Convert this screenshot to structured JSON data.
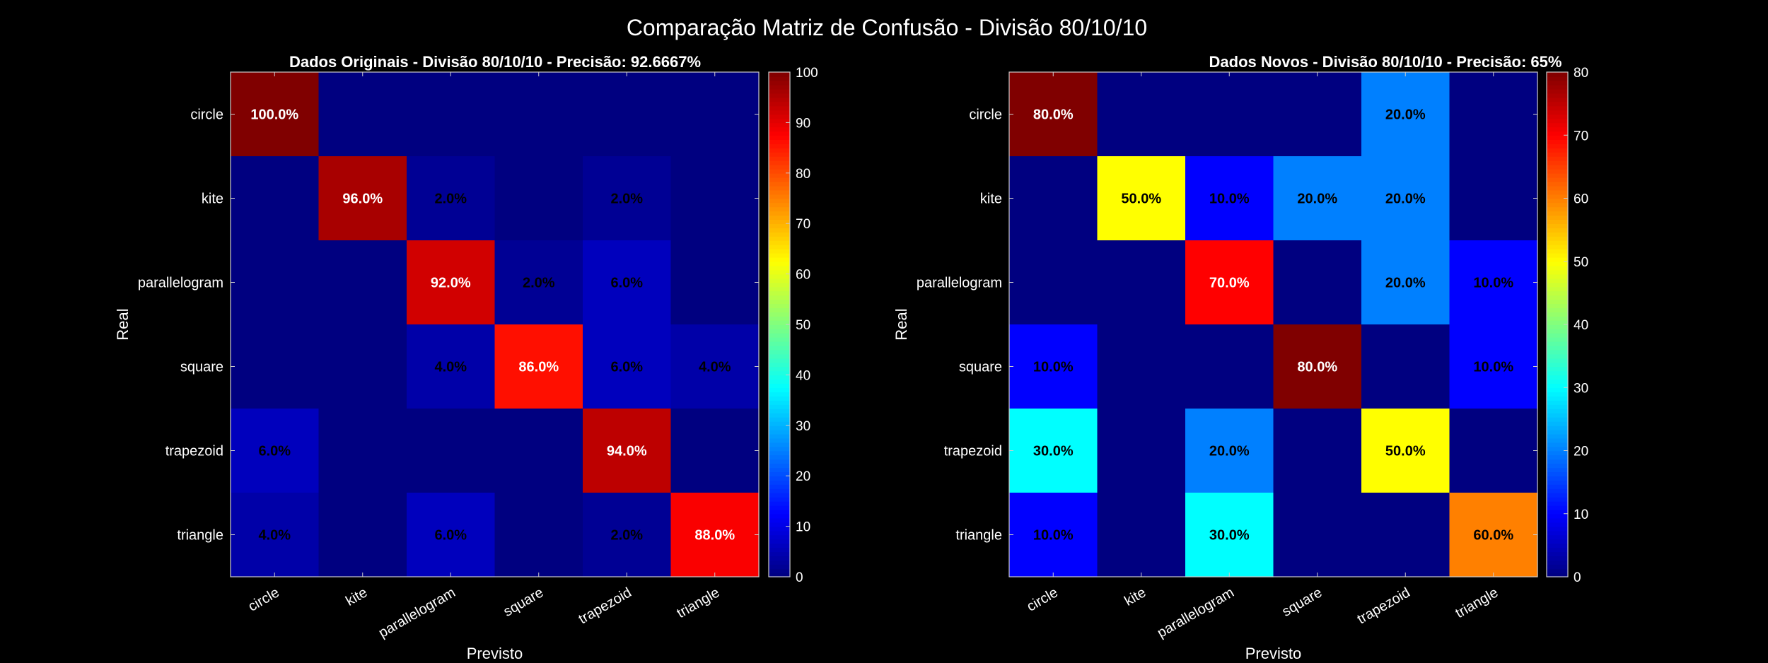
{
  "figure_title": "Comparação Matriz de Confusão - Divisão 80/10/10",
  "chart_data": [
    {
      "type": "heatmap",
      "title": "Dados Originais - Divisão 80/10/10 - Precisão: 92.6667%",
      "xlabel": "Previsto",
      "ylabel": "Real",
      "x_categories": [
        "circle",
        "kite",
        "parallelogram",
        "square",
        "trapezoid",
        "triangle"
      ],
      "y_categories": [
        "circle",
        "kite",
        "parallelogram",
        "square",
        "trapezoid",
        "triangle"
      ],
      "values": [
        [
          100,
          0,
          0,
          0,
          0,
          0
        ],
        [
          0,
          96,
          2,
          0,
          2,
          0
        ],
        [
          0,
          0,
          92,
          2,
          6,
          0
        ],
        [
          0,
          0,
          4,
          86,
          6,
          4
        ],
        [
          6,
          0,
          0,
          0,
          94,
          0
        ],
        [
          4,
          0,
          6,
          0,
          2,
          88
        ]
      ],
      "labels": [
        [
          "100.0%",
          "",
          "",
          "",
          "",
          ""
        ],
        [
          "",
          "96.0%",
          "2.0%",
          "",
          "2.0%",
          ""
        ],
        [
          "",
          "",
          "92.0%",
          "2.0%",
          "6.0%",
          ""
        ],
        [
          "",
          "",
          "4.0%",
          "86.0%",
          "6.0%",
          "4.0%"
        ],
        [
          "6.0%",
          "",
          "",
          "",
          "94.0%",
          ""
        ],
        [
          "4.0%",
          "",
          "6.0%",
          "",
          "2.0%",
          "88.0%"
        ]
      ],
      "colorbar": {
        "min": 0,
        "max": 100,
        "ticks": [
          "0",
          "10",
          "20",
          "30",
          "40",
          "50",
          "60",
          "70",
          "80",
          "90",
          "100"
        ]
      },
      "colormap": "jet"
    },
    {
      "type": "heatmap",
      "title": "Dados Novos - Divisão 80/10/10 - Precisão: 65%",
      "xlabel": "Previsto",
      "ylabel": "Real",
      "x_categories": [
        "circle",
        "kite",
        "parallelogram",
        "square",
        "trapezoid",
        "triangle"
      ],
      "y_categories": [
        "circle",
        "kite",
        "parallelogram",
        "square",
        "trapezoid",
        "triangle"
      ],
      "values": [
        [
          80,
          0,
          0,
          0,
          20,
          0
        ],
        [
          0,
          50,
          10,
          20,
          20,
          0
        ],
        [
          0,
          0,
          70,
          0,
          20,
          10
        ],
        [
          10,
          0,
          0,
          80,
          0,
          10
        ],
        [
          30,
          0,
          20,
          0,
          50,
          0
        ],
        [
          10,
          0,
          30,
          0,
          0,
          60
        ]
      ],
      "labels": [
        [
          "80.0%",
          "",
          "",
          "",
          "20.0%",
          ""
        ],
        [
          "",
          "50.0%",
          "10.0%",
          "20.0%",
          "20.0%",
          ""
        ],
        [
          "",
          "",
          "70.0%",
          "",
          "20.0%",
          "10.0%"
        ],
        [
          "10.0%",
          "",
          "",
          "80.0%",
          "",
          "10.0%"
        ],
        [
          "30.0%",
          "",
          "20.0%",
          "",
          "50.0%",
          ""
        ],
        [
          "10.0%",
          "",
          "30.0%",
          "",
          "",
          "60.0%"
        ]
      ],
      "colorbar": {
        "min": 0,
        "max": 80,
        "ticks": [
          "0",
          "10",
          "20",
          "30",
          "40",
          "50",
          "60",
          "70",
          "80"
        ]
      },
      "colormap": "jet"
    }
  ]
}
